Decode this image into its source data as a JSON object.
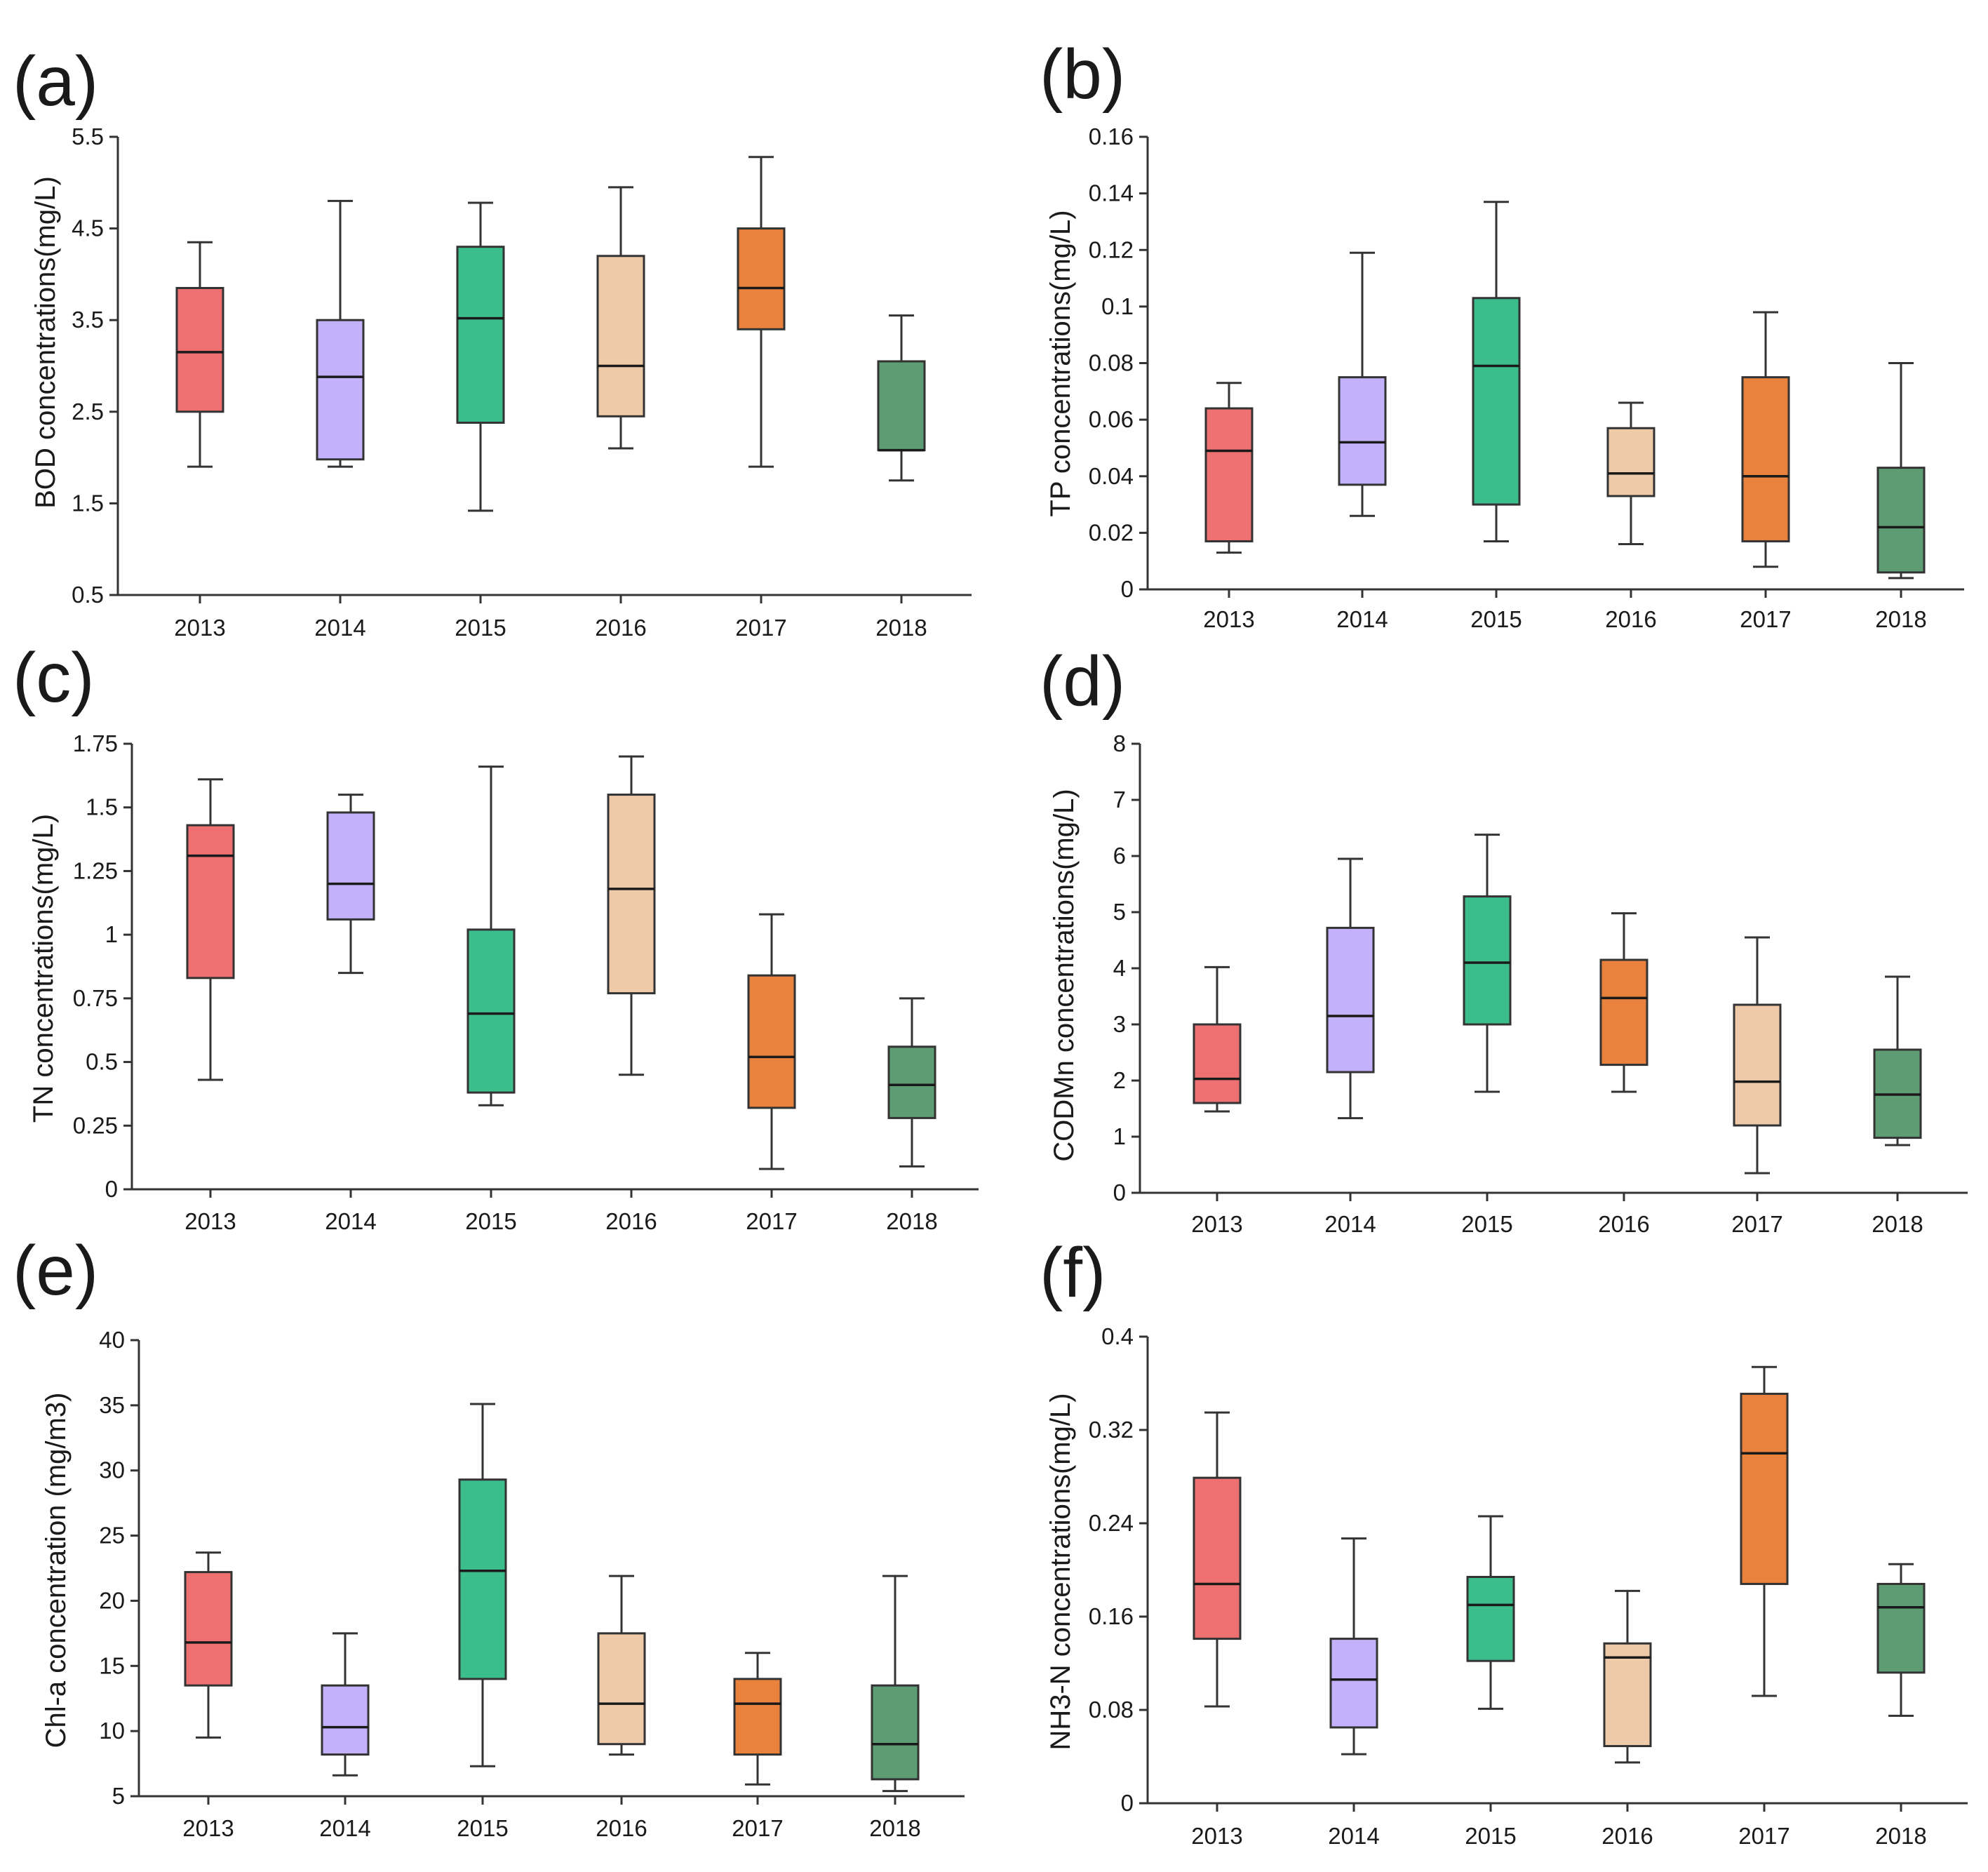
{
  "colors": {
    "2013": "#ee7070",
    "2014": "#c3b2fb",
    "2015": "#3bbd8c",
    "2016": "#efcaa8",
    "2017": "#e8823c",
    "2018": "#5e9c74"
  },
  "chart_data": [
    {
      "type": "box",
      "panel": "(a)",
      "ylabel": "BOD concentrations(mg/L)",
      "categories": [
        "2013",
        "2014",
        "2015",
        "2016",
        "2017",
        "2018"
      ],
      "ylim": [
        0.5,
        5.5
      ],
      "yticks": [
        0.5,
        1.5,
        2.5,
        3.5,
        4.5,
        5.5
      ],
      "ytick_labels": [
        "0.5",
        "1.5",
        "2.5",
        "3.5",
        "4.5",
        "5.5"
      ],
      "box_colors": [
        "2013",
        "2014",
        "2015",
        "2016",
        "2017",
        "2018"
      ],
      "boxes": [
        {
          "min": 1.9,
          "q1": 2.5,
          "median": 3.15,
          "q3": 3.85,
          "max": 4.35
        },
        {
          "min": 1.9,
          "q1": 1.98,
          "median": 2.88,
          "q3": 3.5,
          "max": 4.8
        },
        {
          "min": 1.42,
          "q1": 2.38,
          "median": 3.52,
          "q3": 4.3,
          "max": 4.78
        },
        {
          "min": 2.1,
          "q1": 2.45,
          "median": 3.0,
          "q3": 4.2,
          "max": 4.95
        },
        {
          "min": 1.9,
          "q1": 3.4,
          "median": 3.85,
          "q3": 4.5,
          "max": 5.28
        },
        {
          "min": 1.75,
          "q1": 2.08,
          "median": 2.08,
          "q3": 3.05,
          "max": 3.55
        }
      ]
    },
    {
      "type": "box",
      "panel": "(b)",
      "ylabel": "TP concentrations(mg/L)",
      "categories": [
        "2013",
        "2014",
        "2015",
        "2016",
        "2017",
        "2018"
      ],
      "ylim": [
        0,
        0.16
      ],
      "yticks": [
        0,
        0.02,
        0.04,
        0.06,
        0.08,
        0.1,
        0.12,
        0.14,
        0.16
      ],
      "ytick_labels": [
        "0",
        "0.02",
        "0.04",
        "0.06",
        "0.08",
        "0.1",
        "0.12",
        "0.14",
        "0.16"
      ],
      "box_colors": [
        "2013",
        "2014",
        "2015",
        "2016",
        "2017",
        "2018"
      ],
      "boxes": [
        {
          "min": 0.013,
          "q1": 0.017,
          "median": 0.049,
          "q3": 0.064,
          "max": 0.073
        },
        {
          "min": 0.026,
          "q1": 0.037,
          "median": 0.052,
          "q3": 0.075,
          "max": 0.119
        },
        {
          "min": 0.017,
          "q1": 0.03,
          "median": 0.079,
          "q3": 0.103,
          "max": 0.137
        },
        {
          "min": 0.016,
          "q1": 0.033,
          "median": 0.041,
          "q3": 0.057,
          "max": 0.066
        },
        {
          "min": 0.008,
          "q1": 0.017,
          "median": 0.04,
          "q3": 0.075,
          "max": 0.098
        },
        {
          "min": 0.004,
          "q1": 0.006,
          "median": 0.022,
          "q3": 0.043,
          "max": 0.08
        }
      ]
    },
    {
      "type": "box",
      "panel": "(c)",
      "ylabel": "TN concentrations(mg/L)",
      "categories": [
        "2013",
        "2014",
        "2015",
        "2016",
        "2017",
        "2018"
      ],
      "ylim": [
        0,
        1.75
      ],
      "yticks": [
        0,
        0.25,
        0.5,
        0.75,
        1,
        1.25,
        1.5,
        1.75
      ],
      "ytick_labels": [
        "0",
        "0.25",
        "0.5",
        "0.75",
        "1",
        "1.25",
        "1.5",
        "1.75"
      ],
      "box_colors": [
        "2013",
        "2014",
        "2015",
        "2016",
        "2017",
        "2018"
      ],
      "boxes": [
        {
          "min": 0.43,
          "q1": 0.83,
          "median": 1.31,
          "q3": 1.43,
          "max": 1.61
        },
        {
          "min": 0.85,
          "q1": 1.06,
          "median": 1.2,
          "q3": 1.48,
          "max": 1.55
        },
        {
          "min": 0.33,
          "q1": 0.38,
          "median": 0.69,
          "q3": 1.02,
          "max": 1.66
        },
        {
          "min": 0.45,
          "q1": 0.77,
          "median": 1.18,
          "q3": 1.55,
          "max": 1.7
        },
        {
          "min": 0.08,
          "q1": 0.32,
          "median": 0.52,
          "q3": 0.84,
          "max": 1.08
        },
        {
          "min": 0.09,
          "q1": 0.28,
          "median": 0.41,
          "q3": 0.56,
          "max": 0.75
        }
      ]
    },
    {
      "type": "box",
      "panel": "(d)",
      "ylabel": "CODMn concentrations(mg/L)",
      "categories": [
        "2013",
        "2014",
        "2015",
        "2016",
        "2017",
        "2018"
      ],
      "ylim": [
        0,
        8
      ],
      "yticks": [
        0,
        1,
        2,
        3,
        4,
        5,
        6,
        7,
        8
      ],
      "ytick_labels": [
        "0",
        "1",
        "2",
        "3",
        "4",
        "5",
        "6",
        "7",
        "8"
      ],
      "box_colors": [
        "2013",
        "2014",
        "2015",
        "2017",
        "2016",
        "2018"
      ],
      "boxes": [
        {
          "min": 1.45,
          "q1": 1.6,
          "median": 2.03,
          "q3": 3.0,
          "max": 4.02
        },
        {
          "min": 1.33,
          "q1": 2.15,
          "median": 3.15,
          "q3": 4.72,
          "max": 5.95
        },
        {
          "min": 1.8,
          "q1": 3.0,
          "median": 4.1,
          "q3": 5.28,
          "max": 6.38
        },
        {
          "min": 1.8,
          "q1": 2.28,
          "median": 3.47,
          "q3": 4.15,
          "max": 4.98
        },
        {
          "min": 0.35,
          "q1": 1.2,
          "median": 1.98,
          "q3": 3.35,
          "max": 4.55
        },
        {
          "min": 0.85,
          "q1": 0.98,
          "median": 1.75,
          "q3": 2.55,
          "max": 3.85
        }
      ]
    },
    {
      "type": "box",
      "panel": "(e)",
      "ylabel": "Chl-a concentration (mg/m3)",
      "categories": [
        "2013",
        "2014",
        "2015",
        "2016",
        "2017",
        "2018"
      ],
      "ylim": [
        5,
        40
      ],
      "yticks": [
        5,
        10,
        15,
        20,
        25,
        30,
        35,
        40
      ],
      "ytick_labels": [
        "5",
        "10",
        "15",
        "20",
        "25",
        "30",
        "35",
        "40"
      ],
      "box_colors": [
        "2013",
        "2014",
        "2015",
        "2016",
        "2017",
        "2018"
      ],
      "boxes": [
        {
          "min": 9.5,
          "q1": 13.5,
          "median": 16.8,
          "q3": 22.2,
          "max": 23.7
        },
        {
          "min": 6.6,
          "q1": 8.2,
          "median": 10.3,
          "q3": 13.5,
          "max": 17.5
        },
        {
          "min": 7.3,
          "q1": 14.0,
          "median": 22.3,
          "q3": 29.3,
          "max": 35.1
        },
        {
          "min": 8.2,
          "q1": 9.0,
          "median": 12.1,
          "q3": 17.5,
          "max": 21.9
        },
        {
          "min": 5.9,
          "q1": 8.2,
          "median": 12.1,
          "q3": 14.0,
          "max": 16.0
        },
        {
          "min": 5.4,
          "q1": 6.3,
          "median": 9.0,
          "q3": 13.5,
          "max": 21.9
        }
      ]
    },
    {
      "type": "box",
      "panel": "(f)",
      "ylabel": "NH3-N concentrations(mg/L)",
      "categories": [
        "2013",
        "2014",
        "2015",
        "2016",
        "2017",
        "2018"
      ],
      "ylim": [
        0,
        0.4
      ],
      "yticks": [
        0,
        0.08,
        0.16,
        0.24,
        0.32,
        0.4
      ],
      "ytick_labels": [
        "0",
        "0.08",
        "0.16",
        "0.24",
        "0.32",
        "0.4"
      ],
      "box_colors": [
        "2013",
        "2014",
        "2015",
        "2016",
        "2017",
        "2018"
      ],
      "boxes": [
        {
          "min": 0.083,
          "q1": 0.141,
          "median": 0.188,
          "q3": 0.279,
          "max": 0.335
        },
        {
          "min": 0.042,
          "q1": 0.065,
          "median": 0.106,
          "q3": 0.141,
          "max": 0.227
        },
        {
          "min": 0.081,
          "q1": 0.122,
          "median": 0.17,
          "q3": 0.194,
          "max": 0.246
        },
        {
          "min": 0.035,
          "q1": 0.049,
          "median": 0.125,
          "q3": 0.137,
          "max": 0.182
        },
        {
          "min": 0.092,
          "q1": 0.188,
          "median": 0.3,
          "q3": 0.351,
          "max": 0.374
        },
        {
          "min": 0.075,
          "q1": 0.112,
          "median": 0.168,
          "q3": 0.188,
          "max": 0.205
        }
      ]
    }
  ]
}
